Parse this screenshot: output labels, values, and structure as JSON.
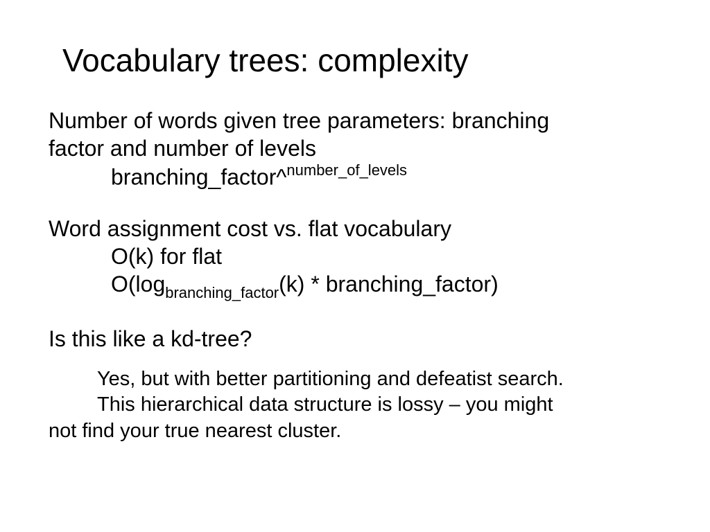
{
  "title": "Vocabulary trees: complexity",
  "p1_line1": "Number of words given tree parameters: branching",
  "p1_line2": "factor and number of levels",
  "formula_base": "branching_factor^",
  "formula_sup": "number_of_levels",
  "p2": "Word assignment cost vs. flat vocabulary",
  "p2_f1": "O(k) for flat",
  "p2_f2_a": "O(log",
  "p2_f2_sub": "branching_factor",
  "p2_f2_b": "(k) * branching_factor)",
  "p3": "Is this like a kd-tree?",
  "p3_a1": "Yes, but with better partitioning and defeatist search.",
  "p3_a2a": "This hierarchical data structure is lossy – you might",
  "p3_a2b": "not find your true nearest cluster."
}
